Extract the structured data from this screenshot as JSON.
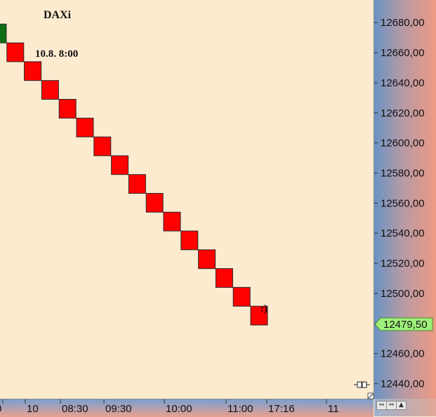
{
  "chart_data": {
    "type": "renko",
    "title": "DAXi",
    "annotation_start": "10.8. 8:00",
    "annotation_end": ":)",
    "brick_size": 12.5,
    "ylim": [
      12430,
      12695
    ],
    "y_ticks": [
      12440,
      12460,
      12480,
      12500,
      12520,
      12540,
      12560,
      12580,
      12600,
      12620,
      12640,
      12660,
      12680
    ],
    "y_tick_labels": [
      "12440,00",
      "12460,00",
      "12480,00",
      "12500,00",
      "12520,00",
      "12540,00",
      "12560,00",
      "12580,00",
      "12600,00",
      "12620,00",
      "12640,00",
      "12660,00",
      "12680,00"
    ],
    "x_tick_labels": [
      "0",
      "10",
      "08:30",
      "09:30",
      "10:00",
      "11:00",
      "17:16",
      "11"
    ],
    "current_price": 12479.5,
    "current_price_label": "12479,50",
    "bricks": [
      {
        "open": 12666.5,
        "close": 12679.0,
        "direction": "up"
      },
      {
        "open": 12666.5,
        "close": 12654.0,
        "direction": "down"
      },
      {
        "open": 12654.0,
        "close": 12641.5,
        "direction": "down"
      },
      {
        "open": 12641.5,
        "close": 12629.0,
        "direction": "down"
      },
      {
        "open": 12629.0,
        "close": 12616.5,
        "direction": "down"
      },
      {
        "open": 12616.5,
        "close": 12604.0,
        "direction": "down"
      },
      {
        "open": 12604.0,
        "close": 12591.5,
        "direction": "down"
      },
      {
        "open": 12591.5,
        "close": 12579.0,
        "direction": "down"
      },
      {
        "open": 12579.0,
        "close": 12566.5,
        "direction": "down"
      },
      {
        "open": 12566.5,
        "close": 12554.0,
        "direction": "down"
      },
      {
        "open": 12554.0,
        "close": 12541.5,
        "direction": "down"
      },
      {
        "open": 12541.5,
        "close": 12529.0,
        "direction": "down"
      },
      {
        "open": 12529.0,
        "close": 12516.5,
        "direction": "down"
      },
      {
        "open": 12516.5,
        "close": 12504.0,
        "direction": "down"
      },
      {
        "open": 12504.0,
        "close": 12491.5,
        "direction": "down"
      },
      {
        "open": 12491.5,
        "close": 12479.0,
        "direction": "down"
      }
    ],
    "colors": {
      "up": "#0d6e14",
      "down": "#ff0000",
      "price_tag": "#9ef07a",
      "background": "#fdebd0"
    },
    "grid": false
  },
  "controls": {
    "zoom_fit_icon": "↔",
    "zoom_in_icon": "⇔",
    "chart_type_icon": "▲",
    "scroll_end_icon": "⊸"
  }
}
